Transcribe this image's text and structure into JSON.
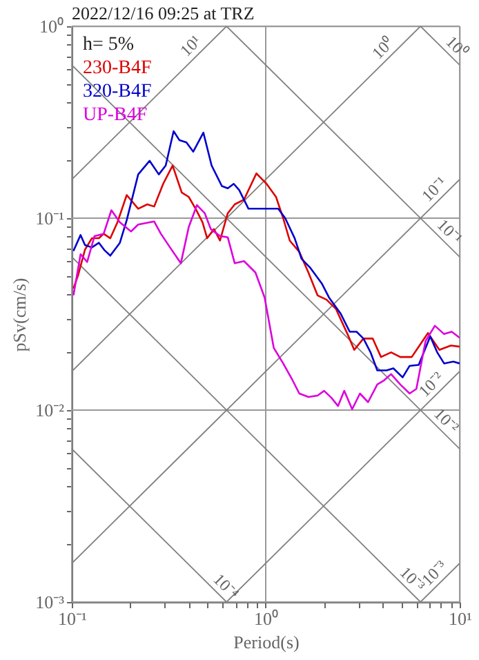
{
  "chart_data": {
    "type": "line",
    "title": "2022/12/16 09:25 at TRZ",
    "xlabel": "Period(s)",
    "ylabel": "pSv(cm/s)",
    "log": "xy",
    "grid": true,
    "legend": "top left",
    "xlim": [
      0.1,
      10
    ],
    "ylim": [
      0.001,
      1
    ],
    "xticks": [
      {
        "value": 0.1,
        "label": "10⁻¹"
      },
      {
        "value": 0.2,
        "label": null
      },
      {
        "value": 0.3,
        "label": null
      },
      {
        "value": 0.4,
        "label": null
      },
      {
        "value": 0.5,
        "label": null
      },
      {
        "value": 0.6,
        "label": null
      },
      {
        "value": 0.7,
        "label": null
      },
      {
        "value": 0.8,
        "label": null
      },
      {
        "value": 0.9,
        "label": null
      },
      {
        "value": 1,
        "label": "10⁰"
      },
      {
        "value": 2,
        "label": null
      },
      {
        "value": 3,
        "label": null
      },
      {
        "value": 4,
        "label": null
      },
      {
        "value": 5,
        "label": null
      },
      {
        "value": 6,
        "label": null
      },
      {
        "value": 7,
        "label": null
      },
      {
        "value": 8,
        "label": null
      },
      {
        "value": 9,
        "label": null
      },
      {
        "value": 10,
        "label": "10¹"
      }
    ],
    "yticks": [
      {
        "value": 0.001,
        "label": "10⁻³"
      },
      {
        "value": 0.002,
        "label": null
      },
      {
        "value": 0.003,
        "label": null
      },
      {
        "value": 0.004,
        "label": null
      },
      {
        "value": 0.005,
        "label": null
      },
      {
        "value": 0.006,
        "label": null
      },
      {
        "value": 0.007,
        "label": null
      },
      {
        "value": 0.008,
        "label": null
      },
      {
        "value": 0.009,
        "label": null
      },
      {
        "value": 0.01,
        "label": "10⁻²"
      },
      {
        "value": 0.02,
        "label": null
      },
      {
        "value": 0.03,
        "label": null
      },
      {
        "value": 0.04,
        "label": null
      },
      {
        "value": 0.05,
        "label": null
      },
      {
        "value": 0.06,
        "label": null
      },
      {
        "value": 0.07,
        "label": null
      },
      {
        "value": 0.08,
        "label": null
      },
      {
        "value": 0.09,
        "label": null
      },
      {
        "value": 0.1,
        "label": "10⁻¹"
      },
      {
        "value": 0.2,
        "label": null
      },
      {
        "value": 0.3,
        "label": null
      },
      {
        "value": 0.4,
        "label": null
      },
      {
        "value": 0.5,
        "label": null
      },
      {
        "value": 0.6,
        "label": null
      },
      {
        "value": 0.7,
        "label": null
      },
      {
        "value": 0.8,
        "label": null
      },
      {
        "value": 0.9,
        "label": null
      },
      {
        "value": 1,
        "label": "10⁰"
      }
    ],
    "annotations": [
      "h= 5%",
      {
        "text": "10¹",
        "x": 0.45,
        "y": 0.72
      },
      {
        "text": "10⁰",
        "x": 4.4,
        "y": 0.7
      },
      {
        "text": "10⁰",
        "x": 8.8,
        "y": 0.714
      },
      {
        "text": "10⁻¹",
        "x": 8.1,
        "y": 0.129
      },
      {
        "text": "10⁻¹",
        "x": 8.1,
        "y": 0.0776
      },
      {
        "text": "10⁻²",
        "x": 7.8,
        "y": 0.0124
      },
      {
        "text": "10⁻²",
        "x": 7.8,
        "y": 0.00805
      },
      {
        "text": "10⁻³",
        "x": 8.1,
        "y": 0.00129
      },
      {
        "text": "10⁻³",
        "x": 5.2,
        "y": 0.0012
      },
      {
        "text": "10⁻⁴",
        "x": 0.57,
        "y": 0.0011
      }
    ],
    "series": [
      {
        "color": "#808080",
        "x": [
          6.28,
          10
        ],
        "values": [
          1,
          0.628
        ]
      },
      {
        "color": "#808080",
        "x": [
          0.628,
          10
        ],
        "values": [
          1,
          0.0628
        ]
      },
      {
        "color": "#808080",
        "x": [
          0.1,
          10
        ],
        "values": [
          0.628,
          0.00628
        ]
      },
      {
        "color": "#808080",
        "x": [
          0.1,
          6.28
        ],
        "values": [
          0.0628,
          0.001
        ]
      },
      {
        "color": "#808080",
        "x": [
          0.1,
          0.628
        ],
        "values": [
          0.00628,
          0.001
        ]
      },
      {
        "color": "#808080",
        "x": [
          0.1,
          0.628
        ],
        "values": [
          0.159,
          1
        ]
      },
      {
        "color": "#808080",
        "x": [
          0.1,
          6.28
        ],
        "values": [
          0.0159,
          1
        ]
      },
      {
        "color": "#808080",
        "x": [
          0.1,
          10
        ],
        "values": [
          0.00159,
          0.159
        ]
      },
      {
        "color": "#808080",
        "x": [
          0.628,
          10
        ],
        "values": [
          0.001,
          0.0159
        ]
      },
      {
        "color": "#808080",
        "x": [
          6.28,
          10
        ],
        "values": [
          0.001,
          0.00159
        ]
      },
      {
        "name": "230-B4F",
        "color": "#dd0000",
        "x": [
          0.102,
          0.108,
          0.117,
          0.127,
          0.138,
          0.146,
          0.158,
          0.172,
          0.192,
          0.22,
          0.245,
          0.266,
          0.296,
          0.331,
          0.369,
          0.401,
          0.435,
          0.472,
          0.499,
          0.541,
          0.581,
          0.637,
          0.692,
          0.773,
          0.895,
          1.01,
          1.13,
          1.23,
          1.33,
          1.49,
          1.66,
          1.85,
          2.06,
          2.3,
          2.64,
          2.86,
          3.19,
          3.56,
          3.93,
          4.43,
          4.94,
          5.66,
          6.32,
          6.86,
          7.86,
          9.01,
          10
        ],
        "values": [
          0.043,
          0.0507,
          0.0686,
          0.0786,
          0.0786,
          0.0829,
          0.0786,
          0.0952,
          0.132,
          0.112,
          0.118,
          0.115,
          0.151,
          0.188,
          0.136,
          0.129,
          0.112,
          0.0952,
          0.0786,
          0.0877,
          0.0764,
          0.106,
          0.118,
          0.125,
          0.171,
          0.151,
          0.129,
          0.1,
          0.0764,
          0.0667,
          0.0521,
          0.0396,
          0.0376,
          0.0337,
          0.0249,
          0.0206,
          0.0236,
          0.0236,
          0.0189,
          0.02,
          0.0189,
          0.0189,
          0.0223,
          0.0252,
          0.0206,
          0.0217,
          0.0214
        ]
      },
      {
        "name": "320-B4F",
        "color": "#0000cc",
        "x": [
          0.102,
          0.111,
          0.117,
          0.127,
          0.138,
          0.148,
          0.158,
          0.177,
          0.192,
          0.22,
          0.252,
          0.281,
          0.305,
          0.335,
          0.359,
          0.39,
          0.423,
          0.477,
          0.526,
          0.594,
          0.637,
          0.684,
          0.73,
          0.815,
          0.91,
          1.07,
          1.16,
          1.26,
          1.41,
          1.53,
          1.7,
          1.95,
          2.12,
          2.43,
          2.71,
          2.94,
          3.19,
          3.47,
          3.76,
          4.2,
          4.55,
          5.08,
          5.52,
          6.15,
          7.05,
          7.66,
          8.31,
          9.27,
          10
        ],
        "values": [
          0.0675,
          0.0817,
          0.0724,
          0.0704,
          0.0744,
          0.0678,
          0.0638,
          0.0744,
          0.0977,
          0.169,
          0.199,
          0.169,
          0.188,
          0.284,
          0.255,
          0.248,
          0.222,
          0.279,
          0.188,
          0.147,
          0.143,
          0.151,
          0.14,
          0.112,
          0.112,
          0.112,
          0.112,
          0.1,
          0.0786,
          0.0614,
          0.055,
          0.0455,
          0.0386,
          0.0319,
          0.0256,
          0.0256,
          0.0236,
          0.02,
          0.0161,
          0.0161,
          0.0165,
          0.0148,
          0.017,
          0.0172,
          0.0242,
          0.02,
          0.0175,
          0.0179,
          0.0175
        ]
      },
      {
        "name": "UP-B4F",
        "color": "#dd00dd",
        "x": [
          0.102,
          0.111,
          0.12,
          0.131,
          0.146,
          0.16,
          0.177,
          0.202,
          0.22,
          0.266,
          0.288,
          0.321,
          0.365,
          0.401,
          0.442,
          0.485,
          0.521,
          0.581,
          0.637,
          0.692,
          0.773,
          0.885,
          0.987,
          1.1,
          1.23,
          1.37,
          1.49,
          1.66,
          1.85,
          2.0,
          2.18,
          2.36,
          2.54,
          2.79,
          3.06,
          3.37,
          3.76,
          4.08,
          4.43,
          4.94,
          5.52,
          5.98,
          6.67,
          7.45,
          8.31,
          9.1,
          10
        ],
        "values": [
          0.0396,
          0.0649,
          0.0591,
          0.0807,
          0.0829,
          0.11,
          0.0952,
          0.0853,
          0.0926,
          0.0961,
          0.0829,
          0.0704,
          0.0582,
          0.09,
          0.117,
          0.106,
          0.0877,
          0.0807,
          0.0795,
          0.0582,
          0.0597,
          0.0521,
          0.0386,
          0.0211,
          0.0175,
          0.0144,
          0.0122,
          0.0117,
          0.0119,
          0.0126,
          0.0116,
          0.0105,
          0.0126,
          0.0101,
          0.0122,
          0.011,
          0.0136,
          0.0143,
          0.0154,
          0.0136,
          0.0122,
          0.0129,
          0.0229,
          0.0275,
          0.0249,
          0.0256,
          0.0238
        ]
      }
    ]
  }
}
